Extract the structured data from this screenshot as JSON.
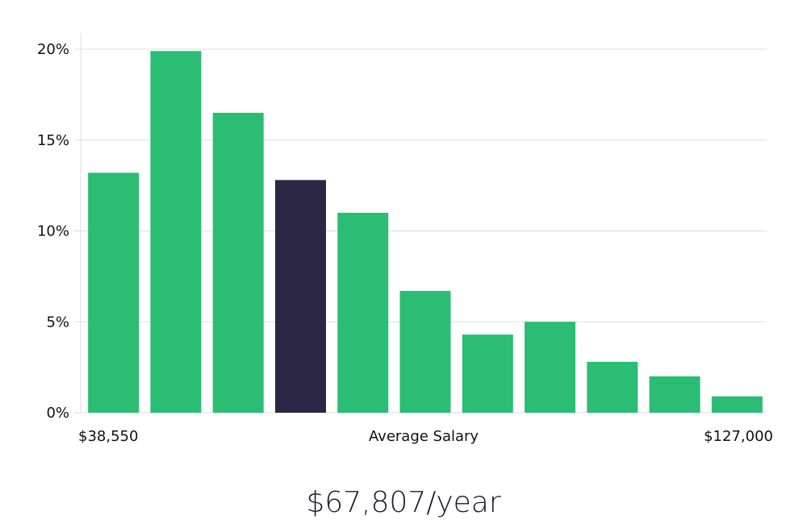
{
  "chart_data": {
    "type": "bar",
    "bins": 11,
    "values": [
      13.2,
      19.9,
      16.5,
      12.8,
      11.0,
      6.7,
      4.3,
      5.0,
      2.8,
      2.0,
      0.9
    ],
    "highlighted_index": 3,
    "ylim": [
      0,
      20
    ],
    "yticks": [
      0,
      5,
      10,
      15,
      20
    ],
    "ytick_labels": [
      "0%",
      "5%",
      "10%",
      "15%",
      "20%"
    ],
    "x_min_label": "$38,550",
    "x_max_label": "$127,000",
    "xlabel": "Average Salary",
    "grid": true,
    "colors": {
      "bar": "#2bbd74",
      "highlight": "#2a2644",
      "grid": "#dddddd",
      "axis": "#dddddd"
    }
  },
  "summary": {
    "average_salary": "$67,807/year"
  }
}
